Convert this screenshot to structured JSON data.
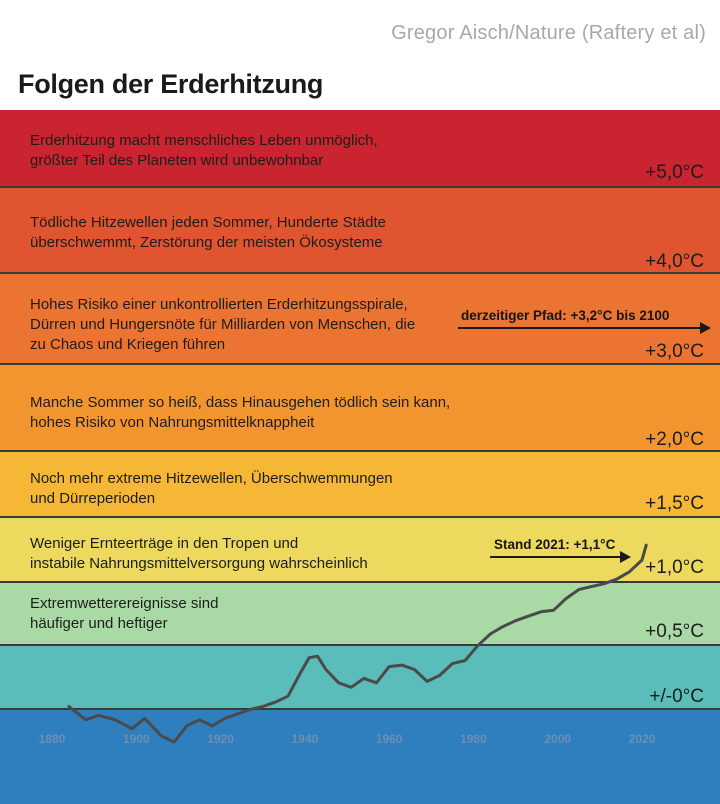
{
  "source": "Gregor Aisch/Nature (Raftery et al)",
  "title": "Folgen der Erderhitzung",
  "bands": [
    {
      "temp": "+5,0°C",
      "color": "#c9242f",
      "line1": "Erderhitzung macht menschliches Leben unmöglich,",
      "line2": "größter Teil des Planeten wird unbewohnbar",
      "line3": ""
    },
    {
      "temp": "+4,0°C",
      "color": "#e0542f",
      "line1": "Tödliche Hitzewellen jeden Sommer, Hunderte Städte",
      "line2": "überschwemmt, Zerstörung der meisten Ökosysteme",
      "line3": ""
    },
    {
      "temp": "+3,0°C",
      "color": "#ec7433",
      "line1": "Hohes Risiko einer unkontrollierten Erderhitzungsspirale,",
      "line2": "Dürren und Hungersnöte für Milliarden von Menschen, die",
      "line3": "zu Chaos und Kriegen führen"
    },
    {
      "temp": "+2,0°C",
      "color": "#f3952f",
      "line1": "Manche Sommer so heiß, dass Hinausgehen tödlich sein kann,",
      "line2": "hohes Risiko von Nahrungsmittelknappheit",
      "line3": ""
    },
    {
      "temp": "+1,5°C",
      "color": "#f5b735",
      "line1": "Noch mehr extreme Hitzewellen, Überschwemmungen",
      "line2": "und Dürreperioden",
      "line3": ""
    },
    {
      "temp": "+1,0°C",
      "color": "#ecd95e",
      "line1": "Weniger Ernteerträge in den Tropen und",
      "line2": "instabile Nahrungsmittelversorgung wahrscheinlich",
      "line3": ""
    },
    {
      "temp": "+0,5°C",
      "color": "#a9d9a5",
      "line1": "Extremwetterereignisse sind",
      "line2": "häufiger und heftiger",
      "line3": ""
    },
    {
      "temp": "+/-0°C",
      "color": "#5bbdb9",
      "line1": "",
      "line2": "",
      "line3": ""
    }
  ],
  "bottom_color": "#2f7fbf",
  "annotations": {
    "path": "derzeitiger Pfad: +3,2°C bis 2100",
    "current": "Stand 2021: +1,1°C"
  },
  "chart_data": {
    "type": "line",
    "title": "Folgen der Erderhitzung",
    "xlabel": "",
    "ylabel": "",
    "x_ticks": [
      "1880",
      "1900",
      "1920",
      "1940",
      "1960",
      "1980",
      "2000",
      "2020"
    ],
    "xlim": [
      1880,
      2020
    ],
    "series": [
      {
        "x": [
          1884,
          1888,
          1891,
          1895,
          1899,
          1902,
          1906,
          1909,
          1912,
          1915,
          1918,
          1921,
          1924,
          1927,
          1930,
          1933,
          1936,
          1939,
          1941,
          1943,
          1945,
          1948,
          1951,
          1954,
          1957,
          1960,
          1963,
          1966,
          1969,
          1972,
          1975,
          1978,
          1981,
          1984,
          1987,
          1990,
          1993,
          1996,
          1999,
          2002,
          2005,
          2008,
          2011,
          2014,
          2017,
          2020,
          2021
        ],
        "values": [
          0.01,
          -0.08,
          -0.05,
          -0.08,
          -0.14,
          -0.07,
          -0.19,
          -0.23,
          -0.12,
          -0.08,
          -0.12,
          -0.07,
          -0.04,
          -0.01,
          0.01,
          0.04,
          0.08,
          0.24,
          0.34,
          0.35,
          0.26,
          0.17,
          0.14,
          0.2,
          0.17,
          0.28,
          0.29,
          0.26,
          0.18,
          0.22,
          0.3,
          0.32,
          0.42,
          0.5,
          0.55,
          0.59,
          0.62,
          0.65,
          0.66,
          0.74,
          0.8,
          0.82,
          0.84,
          0.87,
          0.92,
          1.0,
          1.1
        ]
      }
    ],
    "color": "#4a4a4a"
  }
}
